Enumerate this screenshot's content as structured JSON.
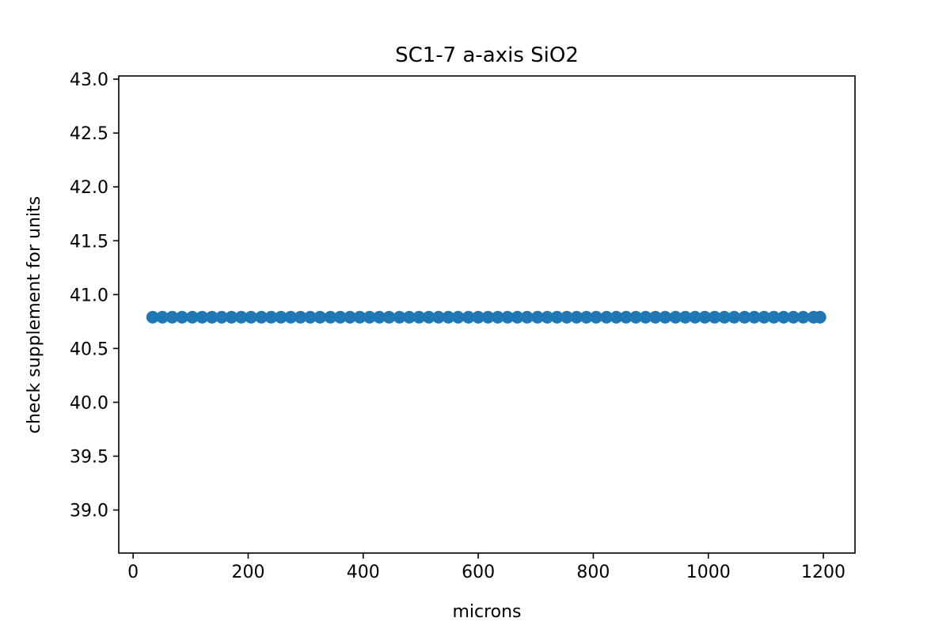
{
  "chart_data": {
    "type": "scatter",
    "title": "SC1-7 a-axis SiO2",
    "xlabel": "microns",
    "ylabel": "check supplement for units",
    "xlim": [
      -25,
      1255
    ],
    "ylim": [
      38.6,
      43.03
    ],
    "xticks": [
      0,
      200,
      400,
      600,
      800,
      1000,
      1200
    ],
    "xtick_labels": [
      "0",
      "200",
      "400",
      "600",
      "800",
      "1000",
      "1200"
    ],
    "yticks": [
      39.0,
      39.5,
      40.0,
      40.5,
      41.0,
      41.5,
      42.0,
      42.5,
      43.0
    ],
    "ytick_labels": [
      "39.0",
      "39.5",
      "40.0",
      "40.5",
      "41.0",
      "41.5",
      "42.0",
      "42.5",
      "43.0"
    ],
    "grid": false,
    "marker_color": "#1f77b4",
    "x": [
      34,
      51,
      68,
      85,
      103,
      120,
      137,
      154,
      171,
      188,
      205,
      223,
      240,
      257,
      274,
      291,
      308,
      325,
      343,
      360,
      377,
      394,
      411,
      428,
      445,
      463,
      480,
      497,
      514,
      531,
      548,
      565,
      583,
      600,
      617,
      634,
      651,
      668,
      685,
      703,
      720,
      737,
      754,
      771,
      788,
      805,
      823,
      840,
      857,
      874,
      891,
      908,
      925,
      943,
      960,
      977,
      994,
      1011,
      1028,
      1045,
      1063,
      1080,
      1097,
      1114,
      1131,
      1148,
      1165,
      1183,
      1194
    ],
    "y": [
      40.79,
      40.79,
      40.79,
      40.79,
      40.79,
      40.79,
      40.79,
      40.79,
      40.79,
      40.79,
      40.79,
      40.79,
      40.79,
      40.79,
      40.79,
      40.79,
      40.79,
      40.79,
      40.79,
      40.79,
      40.79,
      40.79,
      40.79,
      40.79,
      40.79,
      40.79,
      40.79,
      40.79,
      40.79,
      40.79,
      40.79,
      40.79,
      40.79,
      40.79,
      40.79,
      40.79,
      40.79,
      40.79,
      40.79,
      40.79,
      40.79,
      40.79,
      40.79,
      40.79,
      40.79,
      40.79,
      40.79,
      40.79,
      40.79,
      40.79,
      40.79,
      40.79,
      40.79,
      40.79,
      40.79,
      40.79,
      40.79,
      40.79,
      40.79,
      40.79,
      40.79,
      40.79,
      40.79,
      40.79,
      40.79,
      40.79,
      40.79,
      40.79,
      40.79
    ]
  }
}
